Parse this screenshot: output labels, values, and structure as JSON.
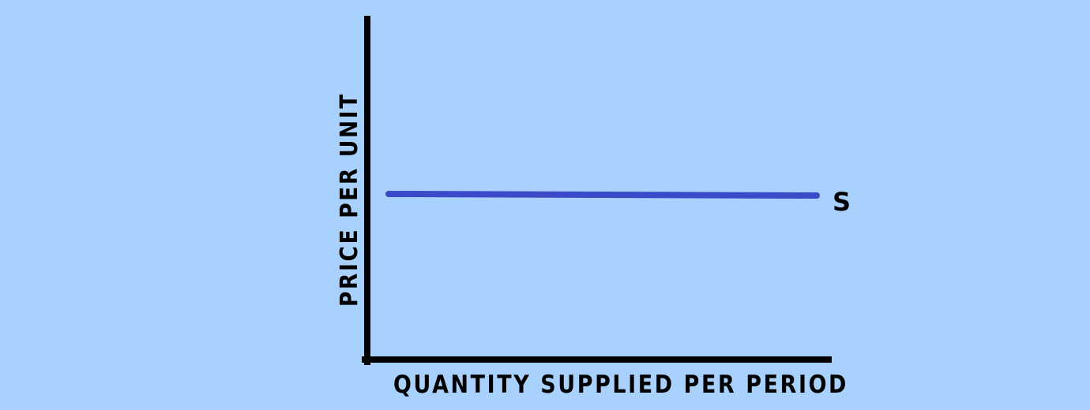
{
  "diagram": {
    "background_color": "#a8d2fd",
    "axis_color": "#000000",
    "curve_color": "#3a4ac8",
    "y_axis_label": "PRICE PER UNIT",
    "x_axis_label": "QUANTITY SUPPLIED PER PERIOD",
    "curve_label": "S"
  }
}
